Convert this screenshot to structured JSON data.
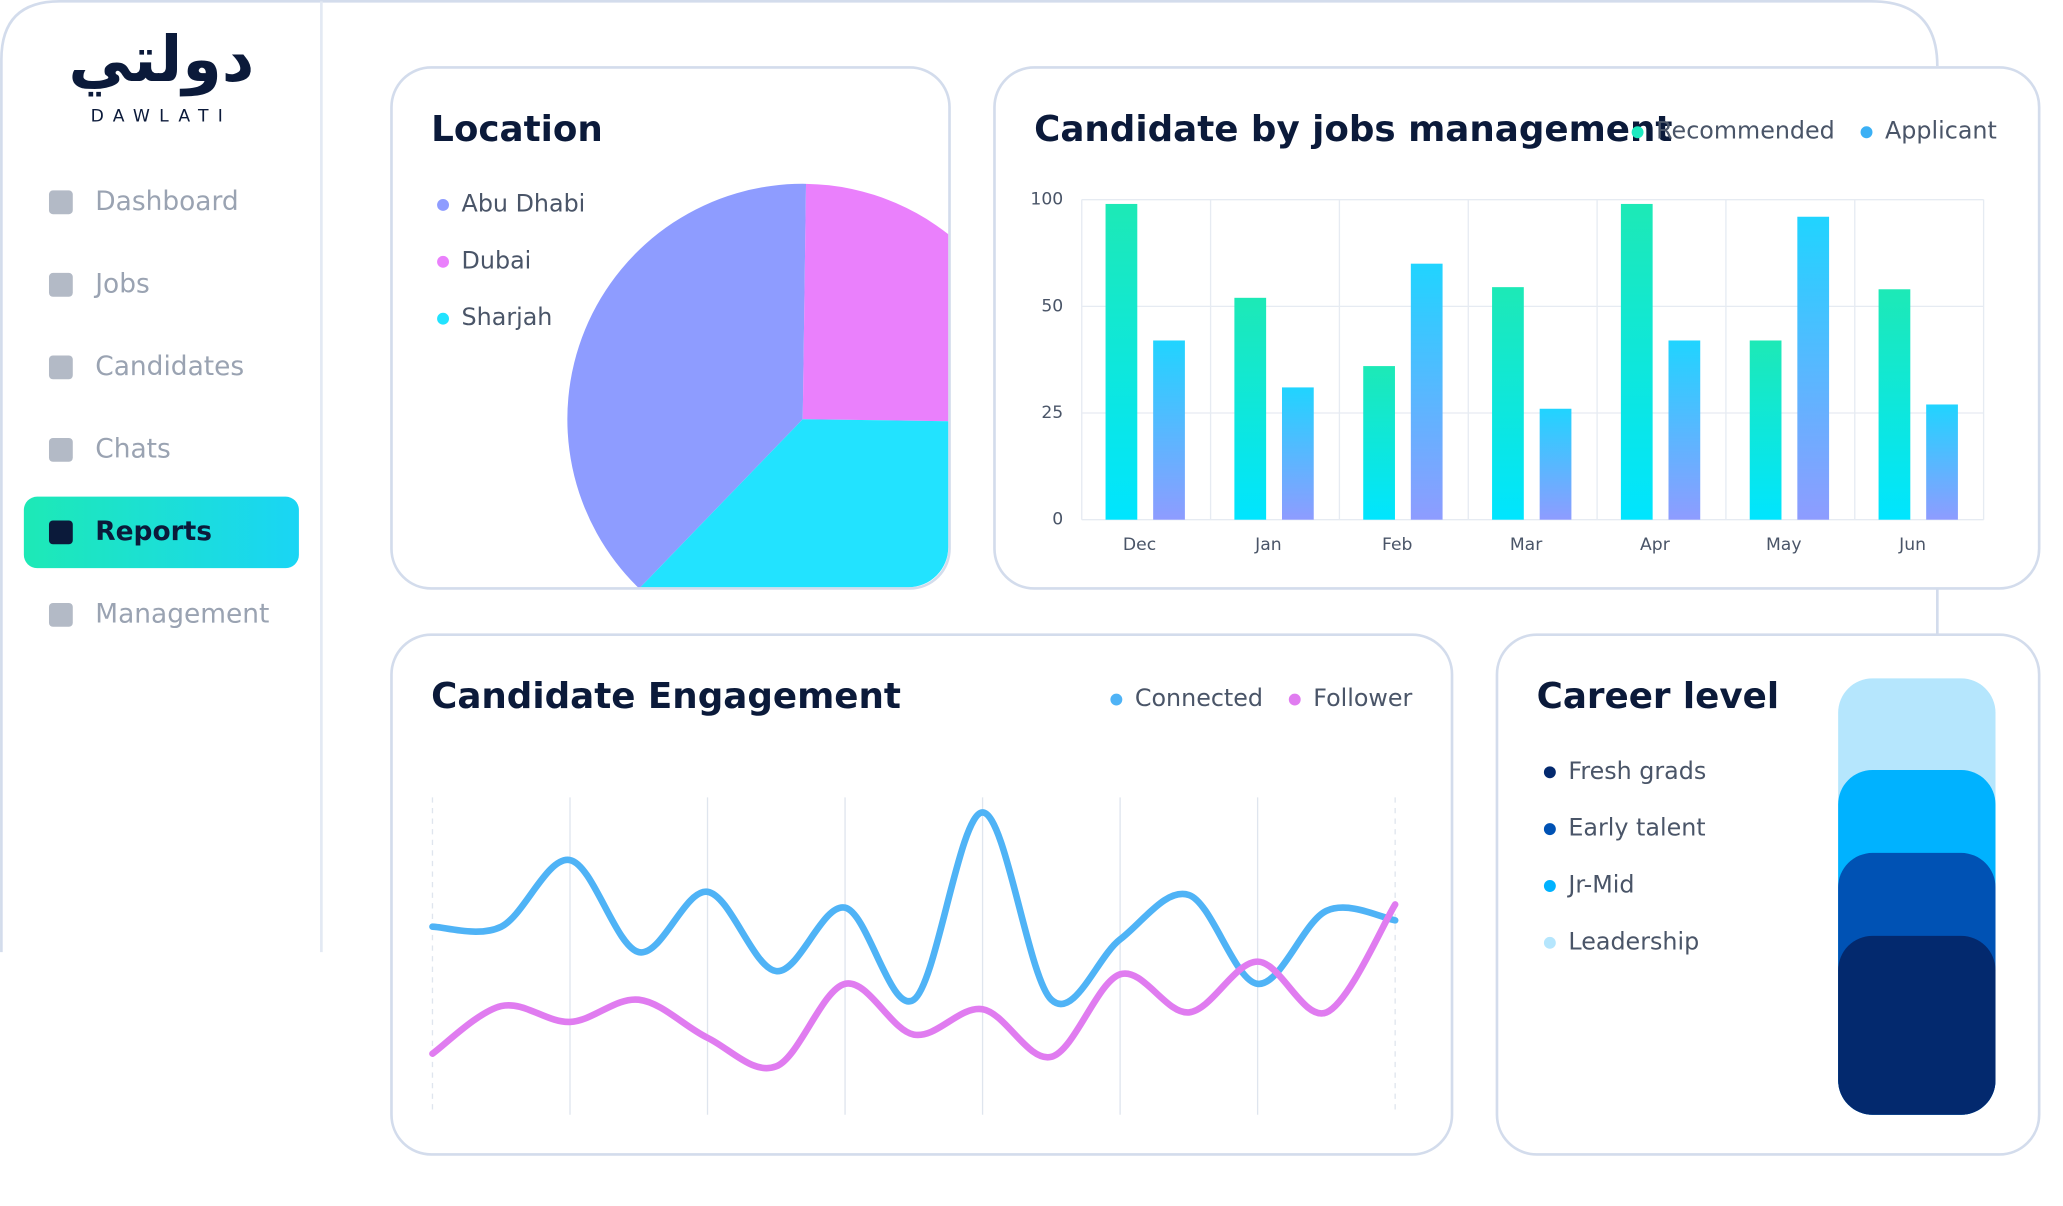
{
  "sidebar": {
    "logo_arabic": "دولتي",
    "logo": "DAWLATI",
    "nav": [
      "Dashboard",
      "Jobs",
      "Candidates",
      "Chats",
      "Reports",
      "Management"
    ],
    "active": 4
  },
  "chart_data": [
    {
      "type": "pie",
      "title": "Location",
      "categories": [
        "Abu Dhabi",
        "Dubai",
        "Sharjah"
      ],
      "values": [
        38,
        25,
        37
      ],
      "colors": [
        "#8e9cff",
        "#ea80fc",
        "#22e3ff"
      ]
    },
    {
      "type": "bar",
      "title": "Candidate by jobs management",
      "categories": [
        "Dec",
        "Jan",
        "Feb",
        "Mar",
        "Apr",
        "May",
        "Jun"
      ],
      "series": [
        {
          "name": "Recommended",
          "color": "#1de9c0",
          "values": [
            98,
            54,
            36,
            59,
            98,
            42,
            58
          ]
        },
        {
          "name": "Applicant",
          "color": "#3bb0f5",
          "values": [
            42,
            31,
            70,
            26,
            42,
            92,
            27
          ]
        }
      ],
      "ylim": [
        0,
        100
      ],
      "yticks": [
        0,
        25,
        50,
        100
      ],
      "grid": true,
      "legend": "top-right"
    },
    {
      "type": "line",
      "title": "Candidate Engagement",
      "ylim": [
        0,
        100
      ],
      "legend": "top-right",
      "series": [
        {
          "name": "Connected",
          "color": "#4fb3f6",
          "values": [
            58,
            58,
            79,
            50,
            69,
            44,
            64,
            35,
            94,
            35,
            54,
            68,
            40,
            63,
            60
          ]
        },
        {
          "name": "Follower",
          "color": "#e07cf0",
          "values": [
            18,
            33,
            28,
            35,
            23,
            14,
            40,
            24,
            32,
            17,
            43,
            31,
            47,
            31,
            65
          ]
        }
      ]
    },
    {
      "type": "stacked_bar",
      "title": "Career level",
      "categories": [
        "Fresh grads",
        "Early talent",
        "Jr-Mid",
        "Leadership"
      ],
      "values": [
        41,
        19,
        19,
        21
      ],
      "colors": [
        "#03296e",
        "#0052b4",
        "#00b2ff",
        "#b5e6fd"
      ]
    }
  ]
}
